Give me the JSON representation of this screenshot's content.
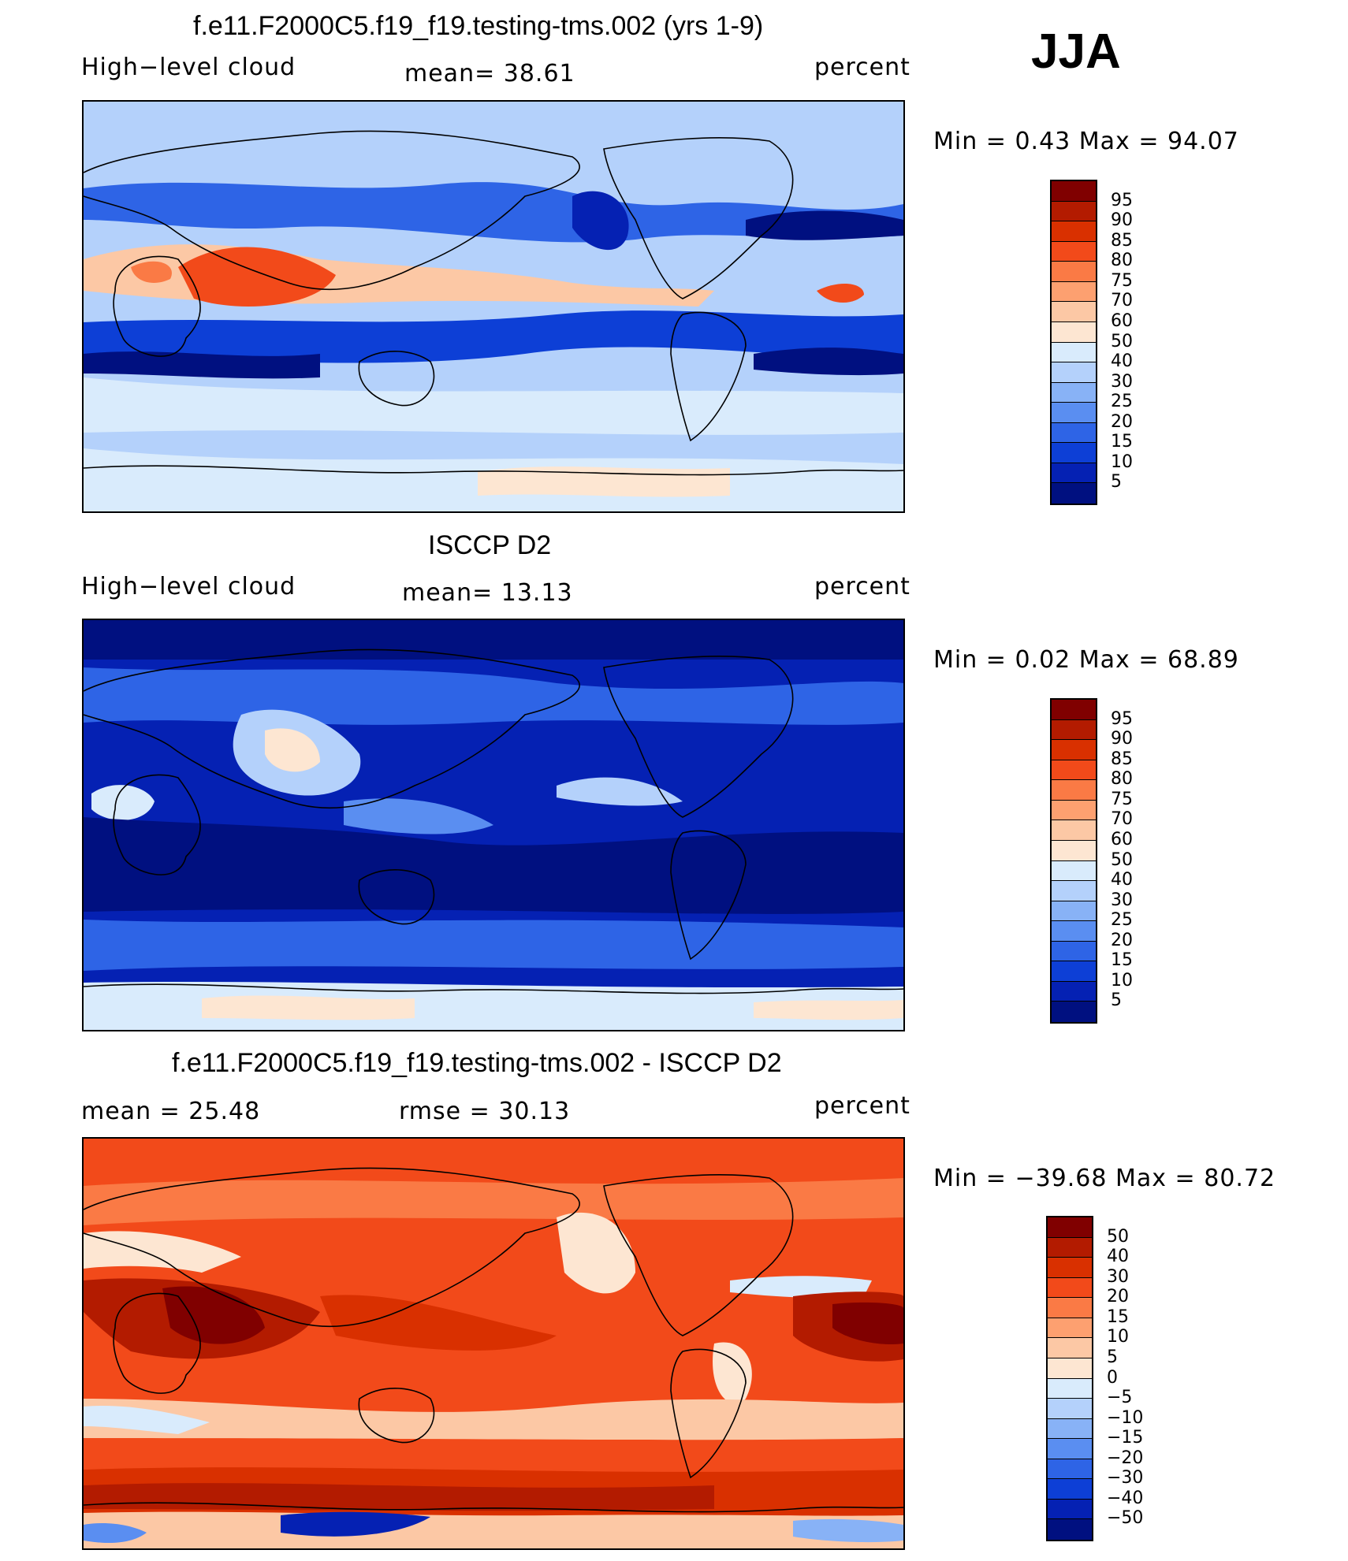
{
  "season": "JJA",
  "panels": [
    {
      "title": "f.e11.F2000C5.f19_f19.testing-tms.002 (yrs 1-9)",
      "left_label": "High−level cloud",
      "mean_label": "mean=   38.61",
      "units": "percent",
      "minmax": "Min =    0.43 Max =   94.07",
      "colorbar_labels": [
        "95",
        "90",
        "85",
        "80",
        "75",
        "70",
        "60",
        "50",
        "40",
        "30",
        "25",
        "20",
        "15",
        "10",
        "5"
      ],
      "colors": [
        "#800000",
        "#b31b00",
        "#d93000",
        "#f24a1a",
        "#fa7a45",
        "#fda070",
        "#fcc8a5",
        "#fde6d2",
        "#d9ebfc",
        "#b4d1fb",
        "#88b2f6",
        "#5a8ef1",
        "#2e64e6",
        "#0d3fd6",
        "#0521b3",
        "#001080"
      ]
    },
    {
      "title": "ISCCP D2",
      "left_label": "High−level cloud",
      "mean_label": "mean=   13.13",
      "units": "percent",
      "minmax": "Min =    0.02 Max =   68.89",
      "colorbar_labels": [
        "95",
        "90",
        "85",
        "80",
        "75",
        "70",
        "60",
        "50",
        "40",
        "30",
        "25",
        "20",
        "15",
        "10",
        "5"
      ],
      "colors": [
        "#800000",
        "#b31b00",
        "#d93000",
        "#f24a1a",
        "#fa7a45",
        "#fda070",
        "#fcc8a5",
        "#fde6d2",
        "#d9ebfc",
        "#b4d1fb",
        "#88b2f6",
        "#5a8ef1",
        "#2e64e6",
        "#0d3fd6",
        "#0521b3",
        "#001080"
      ]
    },
    {
      "title": "f.e11.F2000C5.f19_f19.testing-tms.002 - ISCCP D2",
      "left_label": "mean =   25.48",
      "mean_label": "rmse =   30.13",
      "units": "percent",
      "minmax": "Min = −39.68 Max =   80.72",
      "colorbar_labels": [
        "50",
        "40",
        "30",
        "20",
        "15",
        "10",
        "5",
        "0",
        "−5",
        "−10",
        "−15",
        "−20",
        "−30",
        "−40",
        "−50"
      ],
      "colors": [
        "#800000",
        "#b31b00",
        "#d93000",
        "#f24a1a",
        "#fa7a45",
        "#fda070",
        "#fcc8a5",
        "#fde6d2",
        "#d9ebfc",
        "#b4d1fb",
        "#88b2f6",
        "#5a8ef1",
        "#2e64e6",
        "#0d3fd6",
        "#0521b3",
        "#001080"
      ]
    }
  ]
}
